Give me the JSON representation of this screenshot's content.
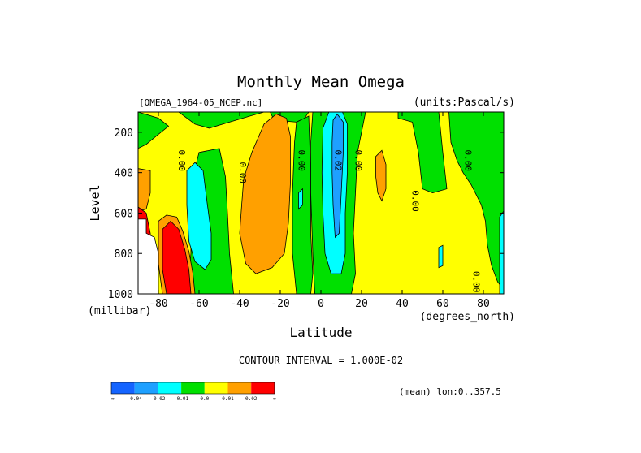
{
  "chart_data": {
    "type": "heatmap",
    "title": "Monthly Mean Omega",
    "subtitle_left": "[OMEGA_1964-05_NCEP.nc]",
    "subtitle_right": "(units:Pascal/s)",
    "xlabel": "Latitude",
    "ylabel": "Level",
    "x_unit_label": "(degrees_north)",
    "y_unit_label": "(millibar)",
    "xlim": [
      -90,
      90
    ],
    "ylim": [
      1000,
      100
    ],
    "x_ticks": [
      -80,
      -60,
      -40,
      -20,
      0,
      20,
      40,
      60,
      80
    ],
    "x_tick_labels": [
      "-80",
      "-60",
      "-40",
      "-20",
      "0",
      "20",
      "40",
      "60",
      "80"
    ],
    "y_ticks": [
      200,
      400,
      600,
      800,
      1000
    ],
    "y_tick_labels": [
      "200",
      "400",
      "600",
      "800",
      "1000"
    ],
    "contour_interval_text": "CONTOUR INTERVAL = 1.000E-02",
    "footer_text": "(mean) lon:0..357.5",
    "colorbar": {
      "colors": [
        "#1464ff",
        "#1ea0ff",
        "#00ffff",
        "#00e000",
        "#ffff00",
        "#ffa000",
        "#ff0000"
      ],
      "labels": [
        "-∞",
        "-0.04",
        "-0.02",
        "-0.01",
        "0.0",
        "0.01",
        "0.02",
        "∞"
      ]
    },
    "regions": [
      {
        "value": "yellow",
        "color": "#ffff00",
        "points": [
          [
            -90,
            100
          ],
          [
            90,
            100
          ],
          [
            90,
            1000
          ],
          [
            -90,
            1000
          ]
        ]
      },
      {
        "value": "green",
        "color": "#00e000",
        "points": [
          [
            -90,
            100
          ],
          [
            -70,
            100
          ],
          [
            -62,
            160
          ],
          [
            -55,
            180
          ],
          [
            -45,
            150
          ],
          [
            -35,
            120
          ],
          [
            -28,
            100
          ],
          [
            -25,
            100
          ],
          [
            -23,
            140
          ],
          [
            -12,
            150
          ],
          [
            -8,
            130
          ],
          [
            -6,
            100
          ],
          [
            -90,
            100
          ]
        ]
      },
      {
        "value": "green",
        "color": "#00e000",
        "points": [
          [
            -90,
            100
          ],
          [
            -90,
            280
          ],
          [
            -86,
            260
          ],
          [
            -80,
            210
          ],
          [
            -75,
            170
          ],
          [
            -80,
            130
          ],
          [
            -90,
            100
          ]
        ]
      },
      {
        "value": "green",
        "color": "#00e000",
        "points": [
          [
            -60,
            300
          ],
          [
            -50,
            280
          ],
          [
            -47,
            420
          ],
          [
            -46,
            600
          ],
          [
            -45,
            800
          ],
          [
            -43,
            1000
          ],
          [
            -66,
            1000
          ],
          [
            -64,
            800
          ],
          [
            -64,
            600
          ],
          [
            -63,
            420
          ]
        ]
      },
      {
        "value": "green",
        "color": "#00e000",
        "points": [
          [
            -12,
            150
          ],
          [
            -6,
            120
          ],
          [
            -5,
            400
          ],
          [
            -5,
            700
          ],
          [
            -4,
            900
          ],
          [
            -5,
            1000
          ],
          [
            -12,
            1000
          ],
          [
            -14,
            800
          ],
          [
            -14,
            500
          ],
          [
            -13,
            250
          ]
        ]
      },
      {
        "value": "green",
        "color": "#00e000",
        "points": [
          [
            -4,
            100
          ],
          [
            22,
            100
          ],
          [
            20,
            200
          ],
          [
            18,
            300
          ],
          [
            17,
            500
          ],
          [
            16,
            700
          ],
          [
            17,
            900
          ],
          [
            15,
            1000
          ],
          [
            -3,
            1000
          ],
          [
            -4,
            800
          ],
          [
            -5,
            500
          ],
          [
            -5,
            250
          ]
        ]
      },
      {
        "value": "green",
        "color": "#00e000",
        "points": [
          [
            38,
            100
          ],
          [
            58,
            100
          ],
          [
            60,
            300
          ],
          [
            62,
            480
          ],
          [
            55,
            500
          ],
          [
            50,
            480
          ],
          [
            48,
            300
          ],
          [
            45,
            150
          ],
          [
            38,
            130
          ]
        ]
      },
      {
        "value": "green",
        "color": "#00e000",
        "points": [
          [
            63,
            100
          ],
          [
            90,
            100
          ],
          [
            90,
            980
          ],
          [
            87,
            940
          ],
          [
            84,
            860
          ],
          [
            82,
            760
          ],
          [
            81,
            640
          ],
          [
            79,
            560
          ],
          [
            74,
            460
          ],
          [
            70,
            400
          ],
          [
            67,
            340
          ],
          [
            64,
            250
          ]
        ]
      },
      {
        "value": "orange",
        "color": "#ffa000",
        "points": [
          [
            -38,
            430
          ],
          [
            -34,
            300
          ],
          [
            -28,
            160
          ],
          [
            -22,
            110
          ],
          [
            -17,
            130
          ],
          [
            -15,
            220
          ],
          [
            -15,
            450
          ],
          [
            -16,
            650
          ],
          [
            -18,
            800
          ],
          [
            -24,
            870
          ],
          [
            -32,
            900
          ],
          [
            -37,
            850
          ],
          [
            -40,
            700
          ],
          [
            -39,
            560
          ]
        ]
      },
      {
        "value": "orange",
        "color": "#ffa000",
        "points": [
          [
            27,
            320
          ],
          [
            30,
            290
          ],
          [
            32,
            360
          ],
          [
            32,
            480
          ],
          [
            30,
            540
          ],
          [
            28,
            500
          ],
          [
            27,
            420
          ]
        ]
      },
      {
        "value": "orange",
        "color": "#ffa000",
        "points": [
          [
            -90,
            380
          ],
          [
            -84,
            390
          ],
          [
            -84,
            500
          ],
          [
            -86,
            580
          ],
          [
            -90,
            590
          ]
        ]
      },
      {
        "value": "orange",
        "color": "#ffa000",
        "points": [
          [
            -80,
            640
          ],
          [
            -76,
            610
          ],
          [
            -71,
            620
          ],
          [
            -68,
            690
          ],
          [
            -65,
            790
          ],
          [
            -63,
            900
          ],
          [
            -62,
            1000
          ],
          [
            -78,
            1000
          ],
          [
            -80,
            850
          ]
        ]
      },
      {
        "value": "cyan",
        "color": "#00ffff",
        "points": [
          [
            -66,
            390
          ],
          [
            -62,
            350
          ],
          [
            -58,
            390
          ],
          [
            -56,
            550
          ],
          [
            -54,
            700
          ],
          [
            -54,
            830
          ],
          [
            -57,
            880
          ],
          [
            -62,
            840
          ],
          [
            -65,
            740
          ],
          [
            -66,
            560
          ]
        ]
      },
      {
        "value": "cyan",
        "color": "#00ffff",
        "points": [
          [
            1,
            180
          ],
          [
            5,
            70
          ],
          [
            9,
            60
          ],
          [
            13,
            160
          ],
          [
            13,
            400
          ],
          [
            12,
            600
          ],
          [
            12,
            800
          ],
          [
            10,
            900
          ],
          [
            5,
            900
          ],
          [
            2,
            800
          ],
          [
            1,
            600
          ],
          [
            0.5,
            400
          ]
        ]
      },
      {
        "value": "blue",
        "color": "#1ea0ff",
        "points": [
          [
            6,
            140
          ],
          [
            8,
            110
          ],
          [
            11,
            150
          ],
          [
            11,
            300
          ],
          [
            10,
            500
          ],
          [
            9,
            700
          ],
          [
            7,
            720
          ],
          [
            6,
            560
          ],
          [
            5.5,
            400
          ],
          [
            5.5,
            250
          ]
        ]
      },
      {
        "value": "red",
        "color": "#ff0000",
        "points": [
          [
            -90,
            570
          ],
          [
            -86,
            600
          ],
          [
            -84,
            700
          ],
          [
            -82,
            900
          ],
          [
            -84,
            1000
          ],
          [
            -90,
            1000
          ]
        ]
      },
      {
        "value": "red",
        "color": "#ff0000",
        "points": [
          [
            -78,
            680
          ],
          [
            -74,
            640
          ],
          [
            -70,
            680
          ],
          [
            -67,
            780
          ],
          [
            -65,
            880
          ],
          [
            -64,
            1000
          ],
          [
            -76,
            1000
          ],
          [
            -78,
            880
          ]
        ]
      },
      {
        "value": "cyan",
        "color": "#00ffff",
        "points": [
          [
            -11,
            500
          ],
          [
            -9,
            480
          ],
          [
            -9,
            560
          ],
          [
            -11,
            580
          ]
        ]
      },
      {
        "value": "cyan",
        "color": "#00ffff",
        "points": [
          [
            58,
            770
          ],
          [
            60,
            760
          ],
          [
            60,
            860
          ],
          [
            58,
            870
          ]
        ]
      },
      {
        "value": "cyan",
        "color": "#00ffff",
        "points": [
          [
            88,
            620
          ],
          [
            90,
            590
          ],
          [
            90,
            1000
          ],
          [
            88,
            1000
          ]
        ]
      }
    ],
    "blank_region": {
      "color": "#ffffff",
      "points": [
        [
          -90,
          630
        ],
        [
          -86,
          630
        ],
        [
          -86,
          700
        ],
        [
          -82,
          720
        ],
        [
          -80,
          800
        ],
        [
          -80,
          1000
        ],
        [
          -90,
          1000
        ]
      ]
    },
    "contour_labels": [
      {
        "text": "0.00",
        "lat": -70,
        "lev": 340
      },
      {
        "text": "0.00",
        "lat": -40,
        "lev": 400
      },
      {
        "text": "0.00",
        "lat": -11,
        "lev": 340
      },
      {
        "text": "0.02",
        "lat": 7,
        "lev": 340
      },
      {
        "text": "0.00",
        "lat": 17,
        "lev": 340
      },
      {
        "text": "0.00",
        "lat": 45,
        "lev": 540
      },
      {
        "text": "0.00",
        "lat": 71,
        "lev": 340
      },
      {
        "text": "0.00",
        "lat": 75,
        "lev": 940
      }
    ]
  }
}
